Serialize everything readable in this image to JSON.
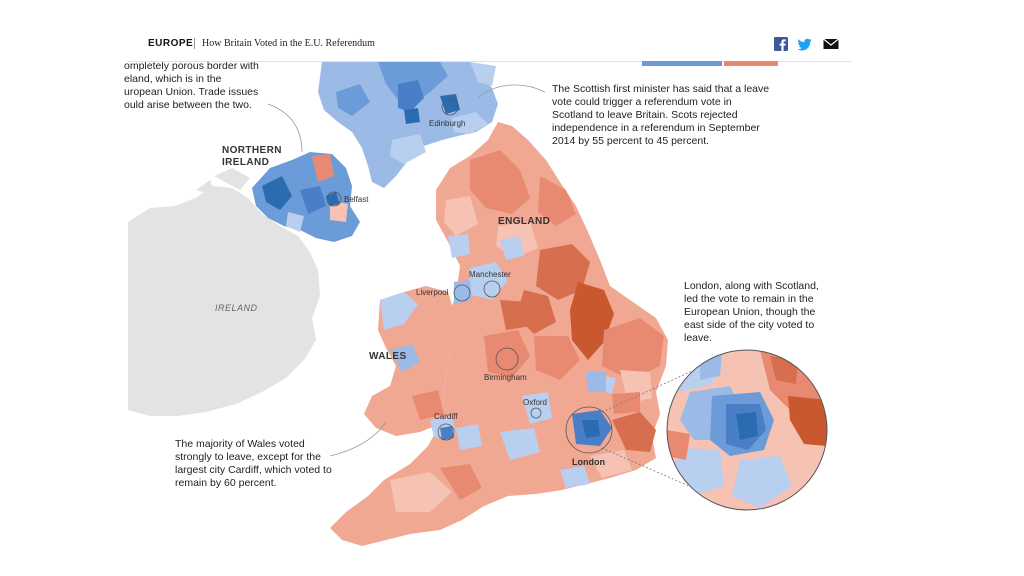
{
  "header": {
    "section": "EUROPE",
    "headline": "How Britain Voted in the E.U. Referendum"
  },
  "share_icons": [
    "facebook-icon",
    "twitter-icon",
    "email-icon"
  ],
  "colors": {
    "remain_strong": "#2b6cb0",
    "remain": "#6b9bd8",
    "remain_light": "#b9cff0",
    "leave_light": "#f5c2b4",
    "leave": "#e88a72",
    "leave_strong": "#c9582f",
    "ireland_fill": "#e3e3e3"
  },
  "regions": {
    "northern_ireland": "NORTHERN\nIRELAND",
    "england": "ENGLAND",
    "wales": "WALES",
    "ireland": "IRELAND"
  },
  "cities": {
    "edinburgh": "Edinburgh",
    "belfast": "Belfast",
    "manchester": "Manchester",
    "liverpool": "Liverpool",
    "birmingham": "Birmingham",
    "oxford": "Oxford",
    "cardiff": "Cardiff",
    "london": "London"
  },
  "annotations": {
    "northern_ireland_note": "ompletely porous border with\neland, which is in the\nuropean Union. Trade issues\nould arise between the two.",
    "scotland_note": "The Scottish first minister has said that a leave\nvote could trigger a referendum vote in\nScotland to leave Britain. Scots rejected\nindependence in a referendum in September\n2014 by 55 percent to 45 percent.",
    "london_note": "London, along with Scotland,\nled the vote to remain in the\nEuropean Union, though the\neast side of the city voted to\nleave.",
    "wales_note": "The majority of Wales voted\nstrongly to leave, except for the\nlargest city Cardiff, which voted to\nremain by 60 percent."
  }
}
